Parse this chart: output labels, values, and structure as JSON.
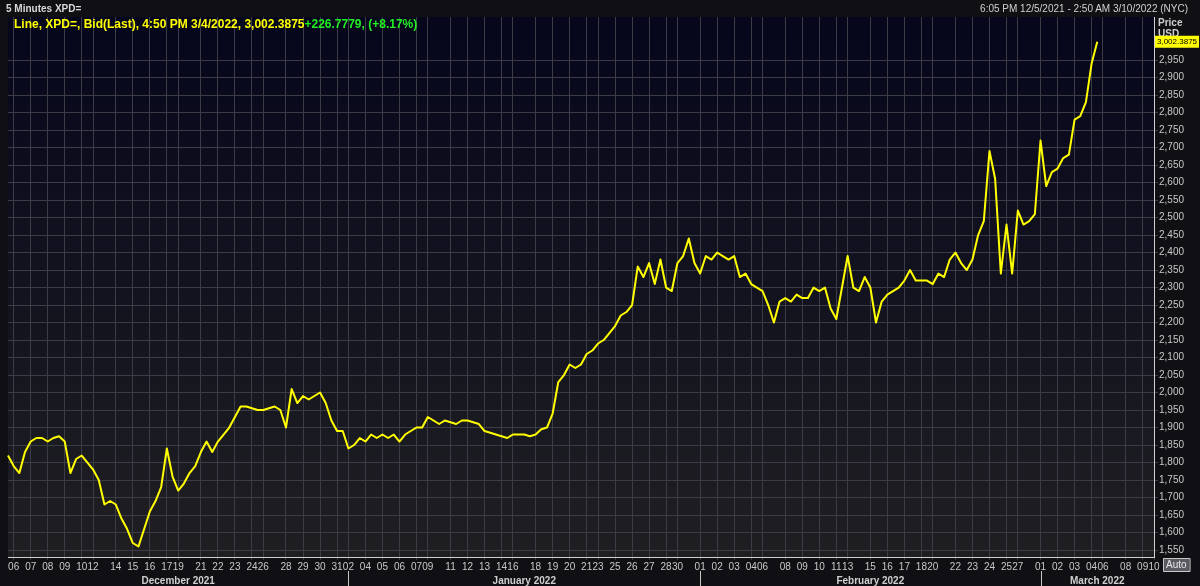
{
  "chart_data": {
    "type": "line",
    "title": "5 Minutes XPD=",
    "ylabel": "Price USD",
    "categories": [
      null,
      "06",
      null,
      null,
      "07",
      null,
      null,
      "08",
      null,
      null,
      "09",
      null,
      null,
      "10",
      null,
      "12",
      null,
      null,
      null,
      "14",
      null,
      null,
      "15",
      null,
      null,
      "16",
      null,
      null,
      "17",
      null,
      "19",
      null,
      null,
      null,
      "21",
      null,
      null,
      "22",
      null,
      null,
      "23",
      null,
      null,
      "24",
      null,
      "26",
      null,
      null,
      null,
      "28",
      null,
      null,
      "29",
      null,
      null,
      "30",
      null,
      null,
      "31",
      null,
      "02",
      null,
      null,
      "04",
      null,
      null,
      "05",
      null,
      null,
      "06",
      null,
      null,
      "07",
      null,
      "09",
      null,
      null,
      null,
      "11",
      null,
      null,
      "12",
      null,
      null,
      "13",
      null,
      null,
      "14",
      null,
      "16",
      null,
      null,
      null,
      "18",
      null,
      null,
      "19",
      null,
      null,
      "20",
      null,
      null,
      "21",
      null,
      "23",
      null,
      null,
      "25",
      null,
      null,
      "26",
      null,
      null,
      "27",
      null,
      null,
      "28",
      null,
      "30",
      null,
      null,
      null,
      "01",
      null,
      null,
      "02",
      null,
      null,
      "03",
      null,
      null,
      "04",
      null,
      "06",
      null,
      null,
      null,
      "08",
      null,
      null,
      "09",
      null,
      null,
      "10",
      null,
      null,
      "11",
      null,
      "13",
      null,
      null,
      null,
      "15",
      null,
      null,
      "16",
      null,
      null,
      "17",
      null,
      null,
      "18",
      null,
      "20",
      null,
      null,
      null,
      "22",
      null,
      null,
      "23",
      null,
      null,
      "24",
      null,
      null,
      "25",
      null,
      "27",
      null,
      null,
      null,
      "01",
      null,
      null,
      "02",
      null,
      null,
      "03",
      null,
      null,
      "04",
      null,
      "06",
      null,
      null,
      null,
      "08",
      null,
      null,
      "09",
      null,
      "10"
    ],
    "series": [
      {
        "name": "Line, XPD=, Bid(Last), 4:50 PM 3/4/2022, 3,002.3875",
        "color": "#ffff00",
        "values": [
          1820,
          1790,
          1770,
          1830,
          1860,
          1870,
          1870,
          1860,
          1870,
          1875,
          1860,
          1770,
          1810,
          1820,
          1800,
          1780,
          1750,
          1680,
          1690,
          1680,
          1640,
          1610,
          1570,
          1560,
          1610,
          1660,
          1690,
          1730,
          1840,
          1760,
          1720,
          1740,
          1770,
          1790,
          1830,
          1860,
          1830,
          1860,
          1880,
          1900,
          1930,
          1960,
          1960,
          1955,
          1950,
          1950,
          1955,
          1960,
          1950,
          1900,
          2010,
          1970,
          1990,
          1980,
          1990,
          2000,
          1970,
          1920,
          1890,
          1890,
          1840,
          1850,
          1870,
          1860,
          1880,
          1870,
          1880,
          1870,
          1880,
          1860,
          1880,
          1890,
          1900,
          1900,
          1930,
          1920,
          1910,
          1920,
          1915,
          1910,
          1920,
          1920,
          1915,
          1910,
          1890,
          1885,
          1880,
          1875,
          1870,
          1880,
          1880,
          1880,
          1875,
          1880,
          1895,
          1900,
          1940,
          2030,
          2050,
          2080,
          2070,
          2080,
          2110,
          2120,
          2140,
          2150,
          2170,
          2190,
          2220,
          2230,
          2250,
          2360,
          2330,
          2370,
          2310,
          2380,
          2300,
          2290,
          2370,
          2390,
          2440,
          2370,
          2340,
          2390,
          2380,
          2400,
          2390,
          2380,
          2390,
          2330,
          2340,
          2310,
          2300,
          2290,
          2250,
          2200,
          2260,
          2270,
          2260,
          2280,
          2270,
          2270,
          2300,
          2290,
          2300,
          2240,
          2210,
          2300,
          2390,
          2300,
          2290,
          2330,
          2300,
          2200,
          2260,
          2280,
          2290,
          2300,
          2320,
          2350,
          2320,
          2320,
          2320,
          2310,
          2340,
          2330,
          2380,
          2400,
          2370,
          2350,
          2380,
          2450,
          2490,
          2690,
          2610,
          2340,
          2480,
          2340,
          2520,
          2480,
          2490,
          2510,
          2720,
          2590,
          2630,
          2640,
          2670,
          2680,
          2780,
          2790,
          2830,
          2940,
          3002.3875,
          null,
          null,
          null,
          null,
          null,
          null,
          null,
          null,
          null,
          null
        ]
      }
    ],
    "ylim": [
      1530,
      3073
    ],
    "yticks": [
      {
        "value": 1550,
        "label": "1,550"
      },
      {
        "value": 1600,
        "label": "1,600"
      },
      {
        "value": 1650,
        "label": "1,650"
      },
      {
        "value": 1700,
        "label": "1,700"
      },
      {
        "value": 1750,
        "label": "1,750"
      },
      {
        "value": 1800,
        "label": "1,800"
      },
      {
        "value": 1850,
        "label": "1,850"
      },
      {
        "value": 1900,
        "label": "1,900"
      },
      {
        "value": 1950,
        "label": "1,950"
      },
      {
        "value": 2000,
        "label": "2,000"
      },
      {
        "value": 2050,
        "label": "2,050"
      },
      {
        "value": 2100,
        "label": "2,100"
      },
      {
        "value": 2150,
        "label": "2,150"
      },
      {
        "value": 2200,
        "label": "2,200"
      },
      {
        "value": 2250,
        "label": "2,250"
      },
      {
        "value": 2300,
        "label": "2,300"
      },
      {
        "value": 2350,
        "label": "2,350"
      },
      {
        "value": 2400,
        "label": "2,400"
      },
      {
        "value": 2450,
        "label": "2,450"
      },
      {
        "value": 2500,
        "label": "2,500"
      },
      {
        "value": 2550,
        "label": "2,550"
      },
      {
        "value": 2600,
        "label": "2,600"
      },
      {
        "value": 2650,
        "label": "2,650"
      },
      {
        "value": 2700,
        "label": "2,700"
      },
      {
        "value": 2750,
        "label": "2,750"
      },
      {
        "value": 2800,
        "label": "2,800"
      },
      {
        "value": 2850,
        "label": "2,850"
      },
      {
        "value": 2900,
        "label": "2,900"
      },
      {
        "value": 2950,
        "label": "2,950"
      }
    ],
    "annotations": [
      "6:05 PM 12/5/2021 - 2:50 AM 3/10/2022 (NYC)",
      "+226.7779, (+8.17%)",
      "3,002.3875",
      "December 2021",
      "January 2022",
      "February 2022",
      "March 2022",
      "Auto"
    ],
    "grid": true,
    "legend": "top left",
    "marker": "none",
    "line_style": "solid"
  }
}
